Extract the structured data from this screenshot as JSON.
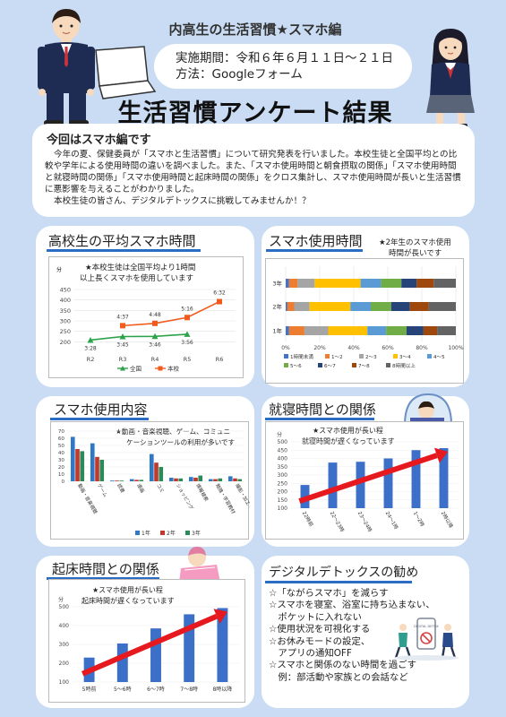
{
  "header": {
    "subtitle": "内高生の生活習慣★スマホ編",
    "period": "実施期間：令和６年６月１１日～２１日",
    "method": "方法：Googleフォーム",
    "main_title": "生活習慣アンケート結果"
  },
  "intro": {
    "heading": "今回はスマホ編です",
    "body": "今年の夏、保健委員が「スマホと生活習慣」について研究発表を行いました。本校生徒と全国平均との比較や学年による使用時間の違いを調べました。また、「スマホ使用時間と朝食摂取の関係」「スマホ使用時間と就寝時間の関係」「スマホ使用時間と起床時間の関係」をクロス集計し、スマホ使用時間が長いと生活習慣に悪影響を与えることがわかりました。",
    "closing": "本校生徒の皆さん、デジタルデトックスに挑戦してみませんか！？"
  },
  "sections": {
    "avg": {
      "title": "高校生の平均スマホ時間",
      "note1": "★本校生徒は全国平均より1時間",
      "note2": "以上長くスマホを使用しています",
      "ylabel": "分"
    },
    "usage_time": {
      "title": "スマホ使用時間",
      "note1": "★2年生のスマホ使用",
      "note2": "時間が長いです"
    },
    "content": {
      "title": "スマホ使用内容",
      "note1": "★動画・音楽視聴、ゲーム、コミュニ",
      "note2": "ケーションツールの利用が多いです"
    },
    "sleep": {
      "title": "就寝時間との関係",
      "note1": "★スマホ使用が長い程",
      "note2": "就寝時間が遅くなっています",
      "ylabel": "分"
    },
    "wake": {
      "title": "起床時間との関係",
      "note1": "★スマホ使用が長い程",
      "note2": "起床時間が遅くなっています",
      "ylabel": "分"
    },
    "detox": {
      "title": "デジタルデトックスの勧め",
      "items": [
        "☆「ながらスマホ」を減らす",
        "☆スマホを寝室、浴室に持ち込まない、",
        "　ポケットに入れない",
        "☆使用状況を可視化する",
        "☆お休みモードの設定、",
        "　アプリの通知OFF",
        "☆スマホと関係のない時間を過ごす",
        "　例：部活動や家族との会話など"
      ],
      "sign_text": "DIGITAL DETOX"
    }
  },
  "chart_data": [
    {
      "type": "line",
      "categories": [
        "R2",
        "R3",
        "R4",
        "R5",
        "R6"
      ],
      "ylim": [
        150,
        450
      ],
      "yticks": [
        200,
        250,
        300,
        350,
        400,
        450
      ],
      "ylabel": "分",
      "series": [
        {
          "name": "全国",
          "color": "#2ca24a",
          "values": [
            208,
            225,
            226,
            236,
            null
          ],
          "labels": [
            "3:28",
            "3:45",
            "3:46",
            "3:56",
            ""
          ]
        },
        {
          "name": "本校",
          "color": "#f05a1c",
          "values": [
            null,
            277,
            288,
            316,
            392
          ],
          "labels": [
            "",
            "4:37",
            "4:48",
            "5:16",
            "6:32"
          ]
        }
      ]
    },
    {
      "type": "bar",
      "orientation": "horizontal-stacked-100",
      "categories": [
        "3年",
        "2年",
        "1年"
      ],
      "xticks": [
        "0%",
        "20%",
        "40%",
        "60%",
        "80%",
        "100%"
      ],
      "legend": [
        "1時間未満",
        "1～2",
        "2～3",
        "3～4",
        "4～5",
        "5～6",
        "6～7",
        "7～8",
        "8時間以上"
      ],
      "colors": [
        "#4472c4",
        "#ed7d31",
        "#a5a5a5",
        "#ffc000",
        "#5b9bd5",
        "#70ad47",
        "#264478",
        "#9e480e",
        "#636363"
      ],
      "series_values": [
        [
          2,
          5,
          10,
          27,
          12,
          12,
          9,
          10,
          13
        ],
        [
          1,
          4,
          9,
          24,
          12,
          12,
          11,
          11,
          16
        ],
        [
          2,
          9,
          14,
          23,
          11,
          12,
          10,
          8,
          11
        ]
      ]
    },
    {
      "type": "bar",
      "categories": [
        "動画・音楽視聴",
        "ゲーム",
        "読書",
        "漫画",
        "コミ",
        "ショッピング",
        "情報検索",
        "勉強・学習教材",
        "撮影・加工・創作"
      ],
      "yticks": [
        0,
        10,
        20,
        30,
        40,
        50,
        60,
        70
      ],
      "ylim": [
        0,
        70
      ],
      "series": [
        {
          "name": "1年",
          "color": "#2e78c5",
          "values": [
            62,
            53,
            1,
            3,
            38,
            5,
            6,
            3,
            7
          ]
        },
        {
          "name": "2年",
          "color": "#c0392b",
          "values": [
            45,
            34,
            1,
            2,
            26,
            4,
            5,
            3,
            4
          ]
        },
        {
          "name": "3年",
          "color": "#2a8a5a",
          "values": [
            42,
            30,
            1,
            2,
            20,
            4,
            8,
            4,
            3
          ]
        }
      ]
    },
    {
      "type": "bar",
      "categories": [
        "22時前",
        "22～23時",
        "23～24時",
        "24～1時",
        "1～2時",
        "2時以降"
      ],
      "ylim": [
        100,
        500
      ],
      "yticks": [
        100,
        150,
        200,
        250,
        300,
        350,
        400,
        450,
        500
      ],
      "ylabel": "分",
      "series": [
        {
          "name": "",
          "color": "#3b6fc8",
          "values": [
            240,
            375,
            380,
            400,
            450,
            462
          ]
        }
      ]
    },
    {
      "type": "bar",
      "categories": [
        "5時前",
        "5～6時",
        "6～7時",
        "7～8時",
        "8時以降"
      ],
      "ylim": [
        100,
        500
      ],
      "yticks": [
        100,
        200,
        300,
        400,
        500
      ],
      "ylabel": "分",
      "series": [
        {
          "name": "",
          "color": "#3b6fc8",
          "values": [
            230,
            305,
            385,
            460,
            493
          ]
        }
      ]
    }
  ]
}
